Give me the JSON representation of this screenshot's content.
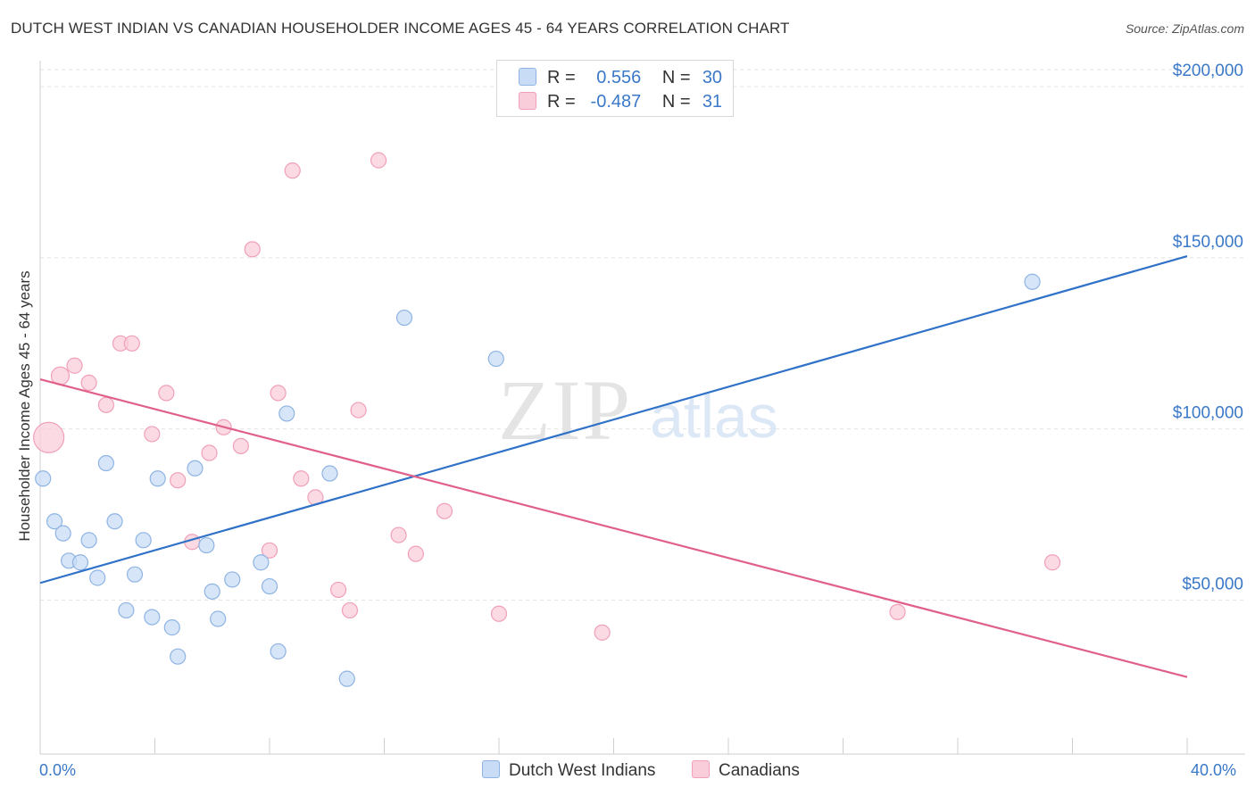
{
  "title": "DUTCH WEST INDIAN VS CANADIAN HOUSEHOLDER INCOME AGES 45 - 64 YEARS CORRELATION CHART",
  "source": "Source: ZipAtlas.com",
  "watermark": {
    "zip": "ZIP",
    "atlas": "atlas"
  },
  "legend": {
    "r_label": "R =",
    "n_label": "N =",
    "rows": [
      {
        "r": "0.556",
        "n": "30",
        "color": "#a9c9f0"
      },
      {
        "r": "-0.487",
        "n": "31",
        "color": "#f6b8c8"
      }
    ]
  },
  "colors": {
    "blue_fill": "#c8dcf5",
    "blue_stroke": "#8fb4e3",
    "blue_line": "#2f72c8",
    "pink_fill": "#f9cdd9",
    "pink_stroke": "#f0a0b8",
    "pink_line": "#e0608a",
    "tick_label": "#3a78c8"
  },
  "chart_data": {
    "type": "scatter",
    "title": "DUTCH WEST INDIAN VS CANADIAN HOUSEHOLDER INCOME AGES 45 - 64 YEARS CORRELATION CHART",
    "xlabel": "",
    "ylabel": "Householder Income Ages 45 - 64 years",
    "xlim": [
      0,
      40
    ],
    "ylim": [
      5000,
      205000
    ],
    "x_tick_labels": [
      {
        "value": 0,
        "label": "0.0%"
      },
      {
        "value": 40,
        "label": "40.0%"
      }
    ],
    "y_ticks": [
      {
        "value": 50000,
        "label": "$50,000"
      },
      {
        "value": 100000,
        "label": "$100,000"
      },
      {
        "value": 150000,
        "label": "$150,000"
      },
      {
        "value": 200000,
        "label": "$200,000"
      }
    ],
    "grid": true,
    "series": [
      {
        "name": "Dutch West Indians",
        "color": "#a9c9f0",
        "r": 0.556,
        "n": 30,
        "trend": {
          "x": [
            0,
            40
          ],
          "y": [
            55000,
            150500
          ]
        },
        "points": [
          [
            0.1,
            85500
          ],
          [
            0.5,
            73000
          ],
          [
            0.8,
            69500
          ],
          [
            1.0,
            61500
          ],
          [
            1.4,
            61000
          ],
          [
            1.7,
            67500
          ],
          [
            2.0,
            56500
          ],
          [
            2.3,
            90000
          ],
          [
            2.6,
            73000
          ],
          [
            3.0,
            47000
          ],
          [
            3.3,
            57500
          ],
          [
            3.6,
            67500
          ],
          [
            3.9,
            45000
          ],
          [
            4.1,
            85500
          ],
          [
            4.6,
            42000
          ],
          [
            4.8,
            33500
          ],
          [
            5.4,
            88500
          ],
          [
            5.8,
            66000
          ],
          [
            6.0,
            52500
          ],
          [
            6.2,
            44500
          ],
          [
            6.7,
            56000
          ],
          [
            7.7,
            61000
          ],
          [
            8.0,
            54000
          ],
          [
            8.3,
            35000
          ],
          [
            8.6,
            104500
          ],
          [
            10.1,
            87000
          ],
          [
            10.7,
            27000
          ],
          [
            12.7,
            132500
          ],
          [
            15.9,
            120500
          ],
          [
            34.6,
            143000
          ]
        ]
      },
      {
        "name": "Canadians",
        "color": "#f6b8c8",
        "r": -0.487,
        "n": 31,
        "trend": {
          "x": [
            0,
            40
          ],
          "y": [
            114500,
            27500
          ]
        },
        "points": [
          [
            0.3,
            97500
          ],
          [
            0.7,
            115500
          ],
          [
            1.2,
            118500
          ],
          [
            1.7,
            113500
          ],
          [
            2.3,
            107000
          ],
          [
            2.8,
            125000
          ],
          [
            3.2,
            125000
          ],
          [
            3.9,
            98500
          ],
          [
            4.4,
            110500
          ],
          [
            4.8,
            85000
          ],
          [
            5.3,
            67000
          ],
          [
            5.9,
            93000
          ],
          [
            6.4,
            100500
          ],
          [
            7.0,
            95000
          ],
          [
            7.4,
            152500
          ],
          [
            8.0,
            64500
          ],
          [
            8.3,
            110500
          ],
          [
            8.8,
            175500
          ],
          [
            9.1,
            85500
          ],
          [
            9.6,
            80000
          ],
          [
            10.4,
            53000
          ],
          [
            10.8,
            47000
          ],
          [
            11.1,
            105500
          ],
          [
            11.8,
            178500
          ],
          [
            12.5,
            69000
          ],
          [
            13.1,
            63500
          ],
          [
            14.1,
            76000
          ],
          [
            16.0,
            46000
          ],
          [
            19.6,
            40500
          ],
          [
            29.9,
            46500
          ],
          [
            35.3,
            61000
          ]
        ]
      }
    ]
  }
}
